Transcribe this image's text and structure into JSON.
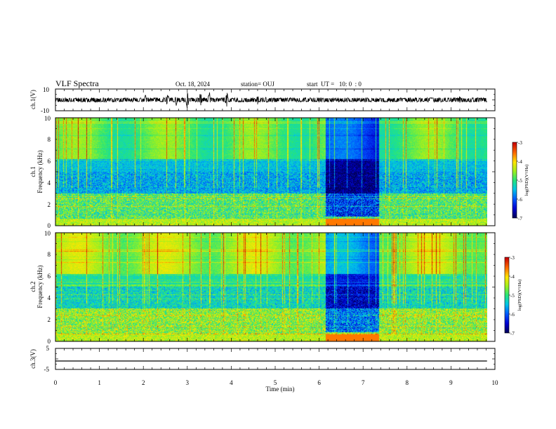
{
  "header": {
    "title": "VLF Spectra",
    "date": "Oct. 18, 2024",
    "station": "station= OUJ",
    "start": "start  UT =   10: 0  : 0"
  },
  "chart_data": [
    {
      "type": "line",
      "name": "ch1-waveform",
      "ylabel": "ch.1(V)",
      "ylim": [
        -10,
        10
      ],
      "yticks": [
        "10",
        "-10"
      ],
      "xlim": [
        0,
        10
      ],
      "baseline": 0,
      "amplitude_typical": 1.4,
      "bursts": [
        {
          "t": 2.05,
          "amp": 4.5
        },
        {
          "t": 2.55,
          "amp": 6.5
        },
        {
          "t": 2.75,
          "amp": 5.5
        },
        {
          "t": 3.0,
          "amp": 7.5
        },
        {
          "t": 3.3,
          "amp": 6.5
        },
        {
          "t": 3.5,
          "amp": 7.5
        },
        {
          "t": 3.9,
          "amp": 6.5
        },
        {
          "t": 4.6,
          "amp": 4.5
        },
        {
          "t": 4.8,
          "amp": 3.5
        },
        {
          "t": 9.2,
          "amp": 3.5
        },
        {
          "t": 9.6,
          "amp": 3
        }
      ]
    },
    {
      "type": "heatmap",
      "name": "ch1-spectrogram",
      "ylabel": "ch.1\nFrequency (kHz)",
      "ylabel_line1": "ch.1",
      "ylabel_line2": "Frequency (kHz)",
      "xlim": [
        0,
        10
      ],
      "data_x_end": 9.82,
      "ylim": [
        0,
        10
      ],
      "yticks": [
        "0",
        "2",
        "4",
        "6",
        "8",
        "10"
      ],
      "quiet_intervals": [
        [
          6.15,
          7.35
        ]
      ],
      "colorbar": {
        "min": -7,
        "max": -3,
        "ticks": [
          "-3",
          "-4",
          "-5",
          "-6",
          "-7"
        ],
        "label": "log(PSD)(V²/Hz)"
      }
    },
    {
      "type": "heatmap",
      "name": "ch2-spectrogram",
      "ylabel_line1": "ch.2",
      "ylabel_line2": "Frequency (kHz)",
      "xlim": [
        0,
        10
      ],
      "data_x_end": 9.82,
      "ylim": [
        0,
        10
      ],
      "yticks": [
        "0",
        "2",
        "4",
        "6",
        "8",
        "10"
      ],
      "quiet_intervals": [
        [
          6.15,
          7.35
        ]
      ],
      "colorbar": {
        "min": -7,
        "max": -3,
        "ticks": [
          "-3",
          "-4",
          "-5",
          "-6",
          "-7"
        ],
        "label": "log(PSD)(V²/Hz)"
      }
    },
    {
      "type": "line",
      "name": "ch3-waveform",
      "ylabel": "ch.3(V)",
      "ylim": [
        -5,
        5
      ],
      "yticks": [
        "5",
        "-5"
      ],
      "xlim": [
        0,
        10
      ],
      "x": [
        0,
        9.82
      ],
      "y": [
        -1,
        -1
      ]
    }
  ],
  "xaxis": {
    "label": "Time (min)",
    "ticks": [
      "0",
      "1",
      "2",
      "3",
      "4",
      "5",
      "6",
      "7",
      "8",
      "9",
      "10"
    ]
  }
}
